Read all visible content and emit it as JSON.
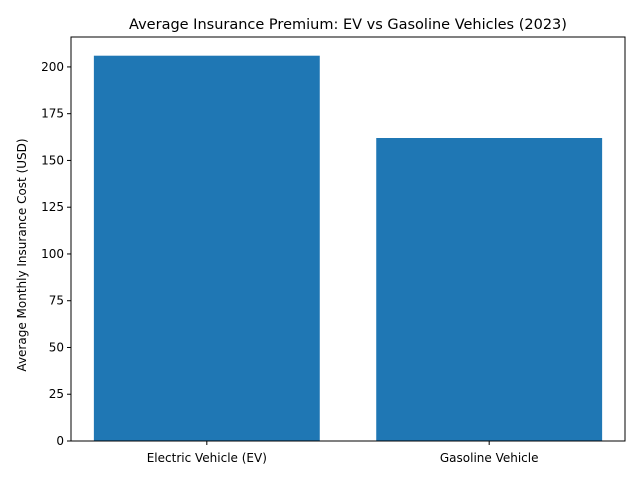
{
  "chart_data": {
    "type": "bar",
    "title": "Average Insurance Premium: EV vs Gasoline Vehicles (2023)",
    "xlabel": "",
    "ylabel": "Average Monthly Insurance Cost (USD)",
    "categories": [
      "Electric Vehicle (EV)",
      "Gasoline Vehicle"
    ],
    "values": [
      206,
      162
    ],
    "ylim": [
      0,
      216
    ],
    "yticks": [
      0,
      25,
      50,
      75,
      100,
      125,
      150,
      175,
      200
    ],
    "bar_color": "#1f77b4",
    "grid": false
  }
}
